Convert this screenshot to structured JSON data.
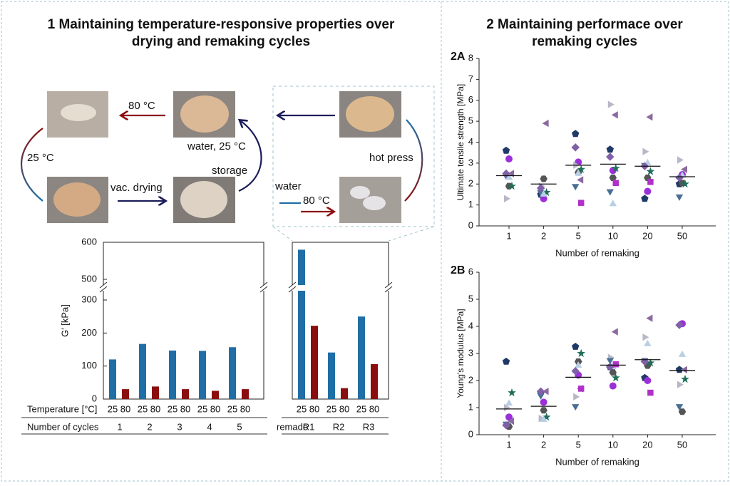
{
  "sections": [
    {
      "title_lines": [
        "1 Maintaining temperature-responsive properties over",
        "drying and remaking cycles"
      ]
    },
    {
      "title_lines": [
        "2 Maintaining performace over",
        "remaking cycles"
      ]
    }
  ],
  "diagram": {
    "labels": [
      "80 °C",
      "25 °C",
      "water, 25 °C",
      "vac. drying",
      "storage",
      "water",
      "80 °C",
      "hot press"
    ]
  },
  "chart_data": [
    {
      "type": "bar",
      "ylabel": "G′ [kPa]",
      "ylim": [
        0,
        600
      ],
      "yticks": [
        0,
        100,
        200,
        300,
        500,
        600
      ],
      "row_label": "Temperature [°C]",
      "groups": [
        {
          "label": "Number of cycles",
          "categories": [
            "1",
            "2",
            "3",
            "4",
            "5"
          ],
          "series": [
            {
              "name": "25",
              "color": "#1f6fa6",
              "values": [
                120,
                167,
                147,
                146,
                157
              ]
            },
            {
              "name": "80",
              "color": "#8b0e0e",
              "values": [
                30,
                38,
                30,
                25,
                30
              ]
            }
          ]
        },
        {
          "label": "remade",
          "categories": [
            "R1",
            "R2",
            "R3"
          ],
          "series": [
            {
              "name": "25",
              "color": "#1f6fa6",
              "values": [
                580,
                141,
                250
              ]
            },
            {
              "name": "80",
              "color": "#8b0e0e",
              "values": [
                222,
                33,
                106
              ]
            }
          ]
        }
      ]
    },
    {
      "type": "scatter",
      "panel": "2A",
      "ylabel": "Ultimate tensile strength [MPa]",
      "xlabel": "Number of remaking",
      "categories": [
        "1",
        "2",
        "5",
        "10",
        "20",
        "50"
      ],
      "ylim": [
        0,
        8
      ],
      "yticks": [
        0,
        1,
        2,
        3,
        4,
        5,
        6,
        7,
        8
      ],
      "means": [
        2.4,
        2.0,
        2.9,
        2.95,
        2.85,
        2.35
      ],
      "series": [
        {
          "marker": "pentagon",
          "color": "#1f3a68",
          "values": [
            3.6,
            1.5,
            4.4,
            3.65,
            1.3,
            2.0
          ]
        },
        {
          "marker": "circle",
          "color": "#9b30d9",
          "values": [
            3.2,
            1.3,
            3.05,
            2.65,
            1.65,
            2.45
          ]
        },
        {
          "marker": "tri-left",
          "color": "#8a6aa0",
          "values": [
            2.5,
            4.9,
            2.2,
            5.3,
            5.2,
            2.7
          ]
        },
        {
          "marker": "tri-right",
          "color": "#b8b8c8",
          "values": [
            1.3,
            1.9,
            2.9,
            5.8,
            3.55,
            3.15
          ]
        },
        {
          "marker": "hexagon",
          "color": "#555555",
          "values": [
            1.9,
            2.25,
            2.55,
            2.3,
            2.3,
            2.05
          ]
        },
        {
          "marker": "star",
          "color": "#1e6e5a",
          "values": [
            1.9,
            1.6,
            2.7,
            2.75,
            2.6,
            2.0
          ]
        },
        {
          "marker": "tri-down",
          "color": "#4a6f95",
          "values": [
            2.4,
            1.6,
            1.9,
            1.65,
            2.9,
            1.4
          ]
        },
        {
          "marker": "tri-up",
          "color": "#b8d0e6",
          "values": [
            2.3,
            1.5,
            2.5,
            1.05,
            3.0,
            2.4
          ]
        },
        {
          "marker": "square",
          "color": "#b030c8",
          "values": [
            null,
            null,
            1.1,
            2.05,
            2.1,
            null
          ]
        },
        {
          "marker": "diamond",
          "color": "#8060a8",
          "values": [
            2.5,
            1.8,
            3.75,
            3.3,
            2.85,
            2.3
          ]
        }
      ]
    },
    {
      "type": "scatter",
      "panel": "2B",
      "ylabel": "Young's modulus [MPa]",
      "xlabel": "Number of remaking",
      "categories": [
        "1",
        "2",
        "5",
        "10",
        "20",
        "50"
      ],
      "ylim": [
        0,
        6
      ],
      "yticks": [
        0,
        1,
        2,
        3,
        4,
        5,
        6
      ],
      "means": [
        0.95,
        1.05,
        2.12,
        2.57,
        2.77,
        2.37
      ],
      "series": [
        {
          "marker": "pentagon",
          "color": "#1f3a68",
          "values": [
            2.7,
            1.55,
            3.25,
            2.5,
            2.1,
            2.4
          ]
        },
        {
          "marker": "circle",
          "color": "#9b30d9",
          "values": [
            0.65,
            1.2,
            2.2,
            1.8,
            2.0,
            4.1
          ]
        },
        {
          "marker": "tri-left",
          "color": "#8a6aa0",
          "values": [
            0.5,
            1.6,
            1.7,
            3.8,
            4.3,
            2.4
          ]
        },
        {
          "marker": "tri-right",
          "color": "#b8b8c8",
          "values": [
            1.0,
            0.6,
            1.4,
            2.85,
            3.6,
            1.85
          ]
        },
        {
          "marker": "hexagon",
          "color": "#555555",
          "values": [
            0.3,
            0.9,
            2.7,
            2.3,
            2.55,
            0.85
          ]
        },
        {
          "marker": "star",
          "color": "#1e6e5a",
          "values": [
            1.55,
            0.65,
            3.0,
            2.1,
            2.65,
            2.05
          ]
        },
        {
          "marker": "tri-down",
          "color": "#4a6f95",
          "values": [
            0.4,
            1.45,
            1.05,
            2.75,
            2.75,
            1.05
          ]
        },
        {
          "marker": "tri-up",
          "color": "#b8d0e6",
          "values": [
            1.15,
            0.55,
            2.55,
            2.5,
            3.35,
            2.95
          ]
        },
        {
          "marker": "square",
          "color": "#b030c8",
          "values": [
            null,
            null,
            1.7,
            2.6,
            1.55,
            null
          ]
        },
        {
          "marker": "diamond",
          "color": "#8060a8",
          "values": [
            0.35,
            1.6,
            2.35,
            2.5,
            2.7,
            4.05
          ]
        }
      ]
    }
  ]
}
